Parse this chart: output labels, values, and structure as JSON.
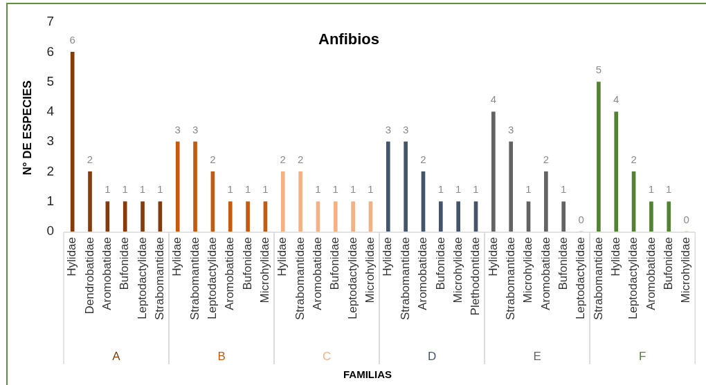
{
  "chart_data": {
    "type": "bar",
    "title": "Anfibios",
    "xlabel": "FAMILIAS",
    "ylabel": "N° DE ESPECIES",
    "categories": [
      "Hylidae",
      "Dendrobatidae",
      "Aromobatidae",
      "Bufonidae",
      "Leptodactylidae",
      "Strabomantidae",
      "Hylidae",
      "Strabomantidae",
      "Leptodactylidae",
      "Aromobatidae",
      "Bufonidae",
      "Microhylidae",
      "Hylidae",
      "Strabomantidae",
      "Aromobatidae",
      "Bufonidae",
      "Leptodactylidae",
      "Microhylidae",
      "Hylidae",
      "Strabomantidae",
      "Aromobatidae",
      "Bufonidae",
      "Microhylidae",
      "Plethodontidae",
      "Hylidae",
      "Strabomantidae",
      "Microhylidae",
      "Aromobatidae",
      "Bufonidae",
      "Leptodactylidae",
      "Strabomantidae",
      "Hylidae",
      "Leptodactylidae",
      "Aromobatidae",
      "Bufonidae",
      "Microhylidae"
    ],
    "series": [
      {
        "name": "A",
        "color": "#843c0c",
        "values": [
          6,
          2,
          1,
          1,
          1,
          1,
          null,
          null,
          null,
          null,
          null,
          null,
          null,
          null,
          null,
          null,
          null,
          null,
          null,
          null,
          null,
          null,
          null,
          null,
          null,
          null,
          null,
          null,
          null,
          null,
          null,
          null,
          null,
          null,
          null,
          null
        ]
      },
      {
        "name": "B",
        "color": "#c55a11",
        "values": [
          null,
          null,
          null,
          null,
          null,
          null,
          3,
          3,
          2,
          1,
          1,
          1,
          null,
          null,
          null,
          null,
          null,
          null,
          null,
          null,
          null,
          null,
          null,
          null,
          null,
          null,
          null,
          null,
          null,
          null,
          null,
          null,
          null,
          null,
          null,
          null
        ]
      },
      {
        "name": "C",
        "color": "#f4b183",
        "values": [
          null,
          null,
          null,
          null,
          null,
          null,
          null,
          null,
          null,
          null,
          null,
          null,
          2,
          2,
          1,
          1,
          1,
          1,
          null,
          null,
          null,
          null,
          null,
          null,
          null,
          null,
          null,
          null,
          null,
          null,
          null,
          null,
          null,
          null,
          null,
          null
        ]
      },
      {
        "name": "D",
        "color": "#44546a",
        "values": [
          null,
          null,
          null,
          null,
          null,
          null,
          null,
          null,
          null,
          null,
          null,
          null,
          null,
          null,
          null,
          null,
          null,
          null,
          3,
          3,
          2,
          1,
          1,
          1,
          null,
          null,
          null,
          null,
          null,
          null,
          null,
          null,
          null,
          null,
          null,
          null
        ]
      },
      {
        "name": "E",
        "color": "#636363",
        "values": [
          null,
          null,
          null,
          null,
          null,
          null,
          null,
          null,
          null,
          null,
          null,
          null,
          null,
          null,
          null,
          null,
          null,
          null,
          null,
          null,
          null,
          null,
          null,
          null,
          4,
          3,
          1,
          2,
          1,
          0,
          null,
          null,
          null,
          null,
          null,
          null
        ]
      },
      {
        "name": "F",
        "color": "#548235",
        "values": [
          null,
          null,
          null,
          null,
          null,
          null,
          null,
          null,
          null,
          null,
          null,
          null,
          null,
          null,
          null,
          null,
          null,
          null,
          null,
          null,
          null,
          null,
          null,
          null,
          null,
          null,
          null,
          null,
          null,
          null,
          5,
          4,
          2,
          1,
          1,
          0
        ]
      }
    ],
    "ylim": [
      0,
      7
    ],
    "yticks": [
      0,
      1,
      2,
      3,
      4,
      5,
      6,
      7
    ],
    "data_labels": true
  }
}
